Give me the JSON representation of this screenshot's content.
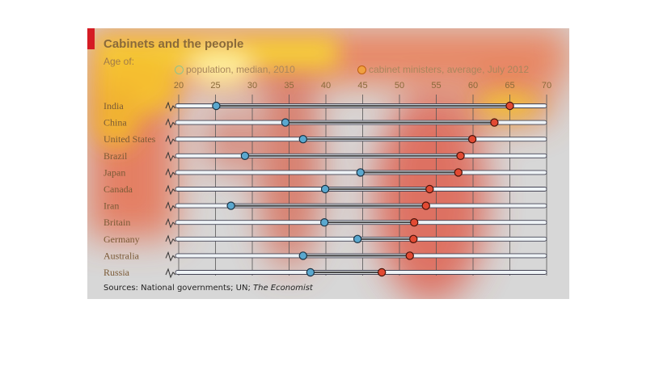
{
  "title": "Cabinets and the people",
  "subtitle": "Age of:",
  "legend": {
    "population": "population, median, 2010",
    "cabinet": "cabinet ministers, average, July 2012"
  },
  "source": {
    "prefix": "Sources: National governments; UN; ",
    "publication": "The Economist"
  },
  "colors": {
    "population": "#5aa8cf",
    "cabinet": "#e24a33",
    "background": "#d7d7d7",
    "accent": "#d51c24"
  },
  "chart_data": {
    "type": "dot",
    "title": "Cabinets and the people",
    "subtitle": "Age of:",
    "xlim": [
      20,
      70
    ],
    "x_ticks": [
      20,
      25,
      30,
      35,
      40,
      45,
      50,
      55,
      60,
      65,
      70
    ],
    "categories": [
      "India",
      "China",
      "United States",
      "Brazil",
      "Japan",
      "Canada",
      "Iran",
      "Britain",
      "Germany",
      "Australia",
      "Russia"
    ],
    "series": [
      {
        "name": "population, median, 2010",
        "values": [
          25.1,
          34.5,
          36.9,
          29.0,
          44.7,
          39.9,
          27.1,
          39.8,
          44.3,
          36.9,
          37.9
        ]
      },
      {
        "name": "cabinet ministers, average, July 2012",
        "values": [
          65.0,
          62.9,
          59.9,
          58.3,
          58.0,
          54.1,
          53.6,
          52.0,
          51.9,
          51.4,
          47.6
        ]
      }
    ]
  }
}
